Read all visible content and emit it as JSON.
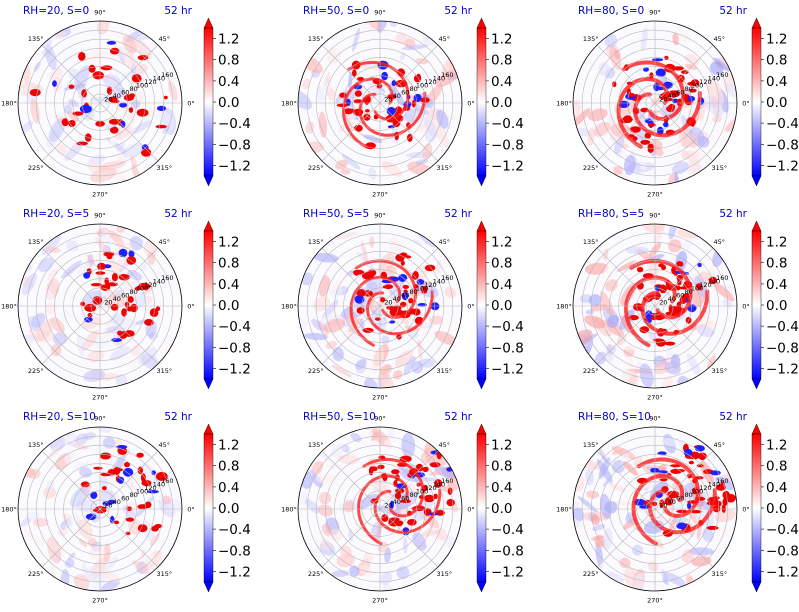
{
  "chart_data": {
    "type": "heatmap",
    "projection": "polar",
    "grid": true,
    "colormap": "bwr",
    "clim": [
      -1.4,
      1.4
    ],
    "colorbar_extend": "both",
    "colorbar_ticks": [
      "1.2",
      "0.8",
      "0.4",
      "0.0",
      "−0.4",
      "−0.8",
      "−1.2"
    ],
    "theta_labels": [
      "0°",
      "45°",
      "90°",
      "135°",
      "180°",
      "225°",
      "270°",
      "315°"
    ],
    "r_labels": [
      "20",
      "40",
      "60",
      "80",
      "100",
      "120",
      "140",
      "160"
    ],
    "rlim": [
      0,
      180
    ],
    "time_label": "52 hr",
    "panels": [
      {
        "title": "RH=20, S=0",
        "rh": 20,
        "shear": 0
      },
      {
        "title": "RH=50, S=0",
        "rh": 50,
        "shear": 0
      },
      {
        "title": "RH=80, S=0",
        "rh": 80,
        "shear": 0
      },
      {
        "title": "RH=20, S=5",
        "rh": 20,
        "shear": 5
      },
      {
        "title": "RH=50, S=5",
        "rh": 50,
        "shear": 5
      },
      {
        "title": "RH=80, S=5",
        "rh": 80,
        "shear": 5
      },
      {
        "title": "RH=20, S=10",
        "rh": 20,
        "shear": 10
      },
      {
        "title": "RH=50, S=10",
        "rh": 50,
        "shear": 10
      },
      {
        "title": "RH=80, S=10",
        "rh": 80,
        "shear": 10
      }
    ]
  }
}
